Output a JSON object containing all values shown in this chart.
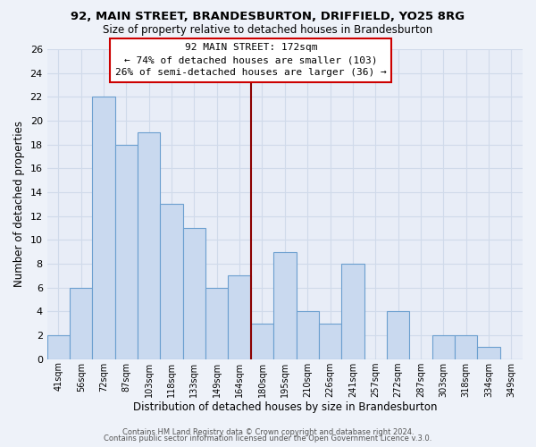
{
  "title": "92, MAIN STREET, BRANDESBURTON, DRIFFIELD, YO25 8RG",
  "subtitle": "Size of property relative to detached houses in Brandesburton",
  "xlabel": "Distribution of detached houses by size in Brandesburton",
  "ylabel": "Number of detached properties",
  "bin_labels": [
    "41sqm",
    "56sqm",
    "72sqm",
    "87sqm",
    "103sqm",
    "118sqm",
    "133sqm",
    "149sqm",
    "164sqm",
    "180sqm",
    "195sqm",
    "210sqm",
    "226sqm",
    "241sqm",
    "257sqm",
    "272sqm",
    "287sqm",
    "303sqm",
    "318sqm",
    "334sqm",
    "349sqm"
  ],
  "bar_heights": [
    2,
    6,
    22,
    18,
    19,
    13,
    11,
    6,
    7,
    3,
    9,
    4,
    3,
    8,
    0,
    4,
    0,
    2,
    2,
    1,
    0
  ],
  "bar_color": "#c9d9ef",
  "bar_edge_color": "#6b9fcf",
  "ylim": [
    0,
    26
  ],
  "yticks": [
    0,
    2,
    4,
    6,
    8,
    10,
    12,
    14,
    16,
    18,
    20,
    22,
    24,
    26
  ],
  "vline_x": 9.0,
  "annotation_title": "92 MAIN STREET: 172sqm",
  "annotation_line1": "← 74% of detached houses are smaller (103)",
  "annotation_line2": "26% of semi-detached houses are larger (36) →",
  "annotation_box_color": "#ffffff",
  "annotation_box_edge": "#cc0000",
  "vline_color": "#8b0000",
  "footer1": "Contains HM Land Registry data © Crown copyright and database right 2024.",
  "footer2": "Contains public sector information licensed under the Open Government Licence v.3.0.",
  "background_color": "#eef2f9",
  "grid_color": "#d0daea",
  "plot_bg": "#e8edf7"
}
